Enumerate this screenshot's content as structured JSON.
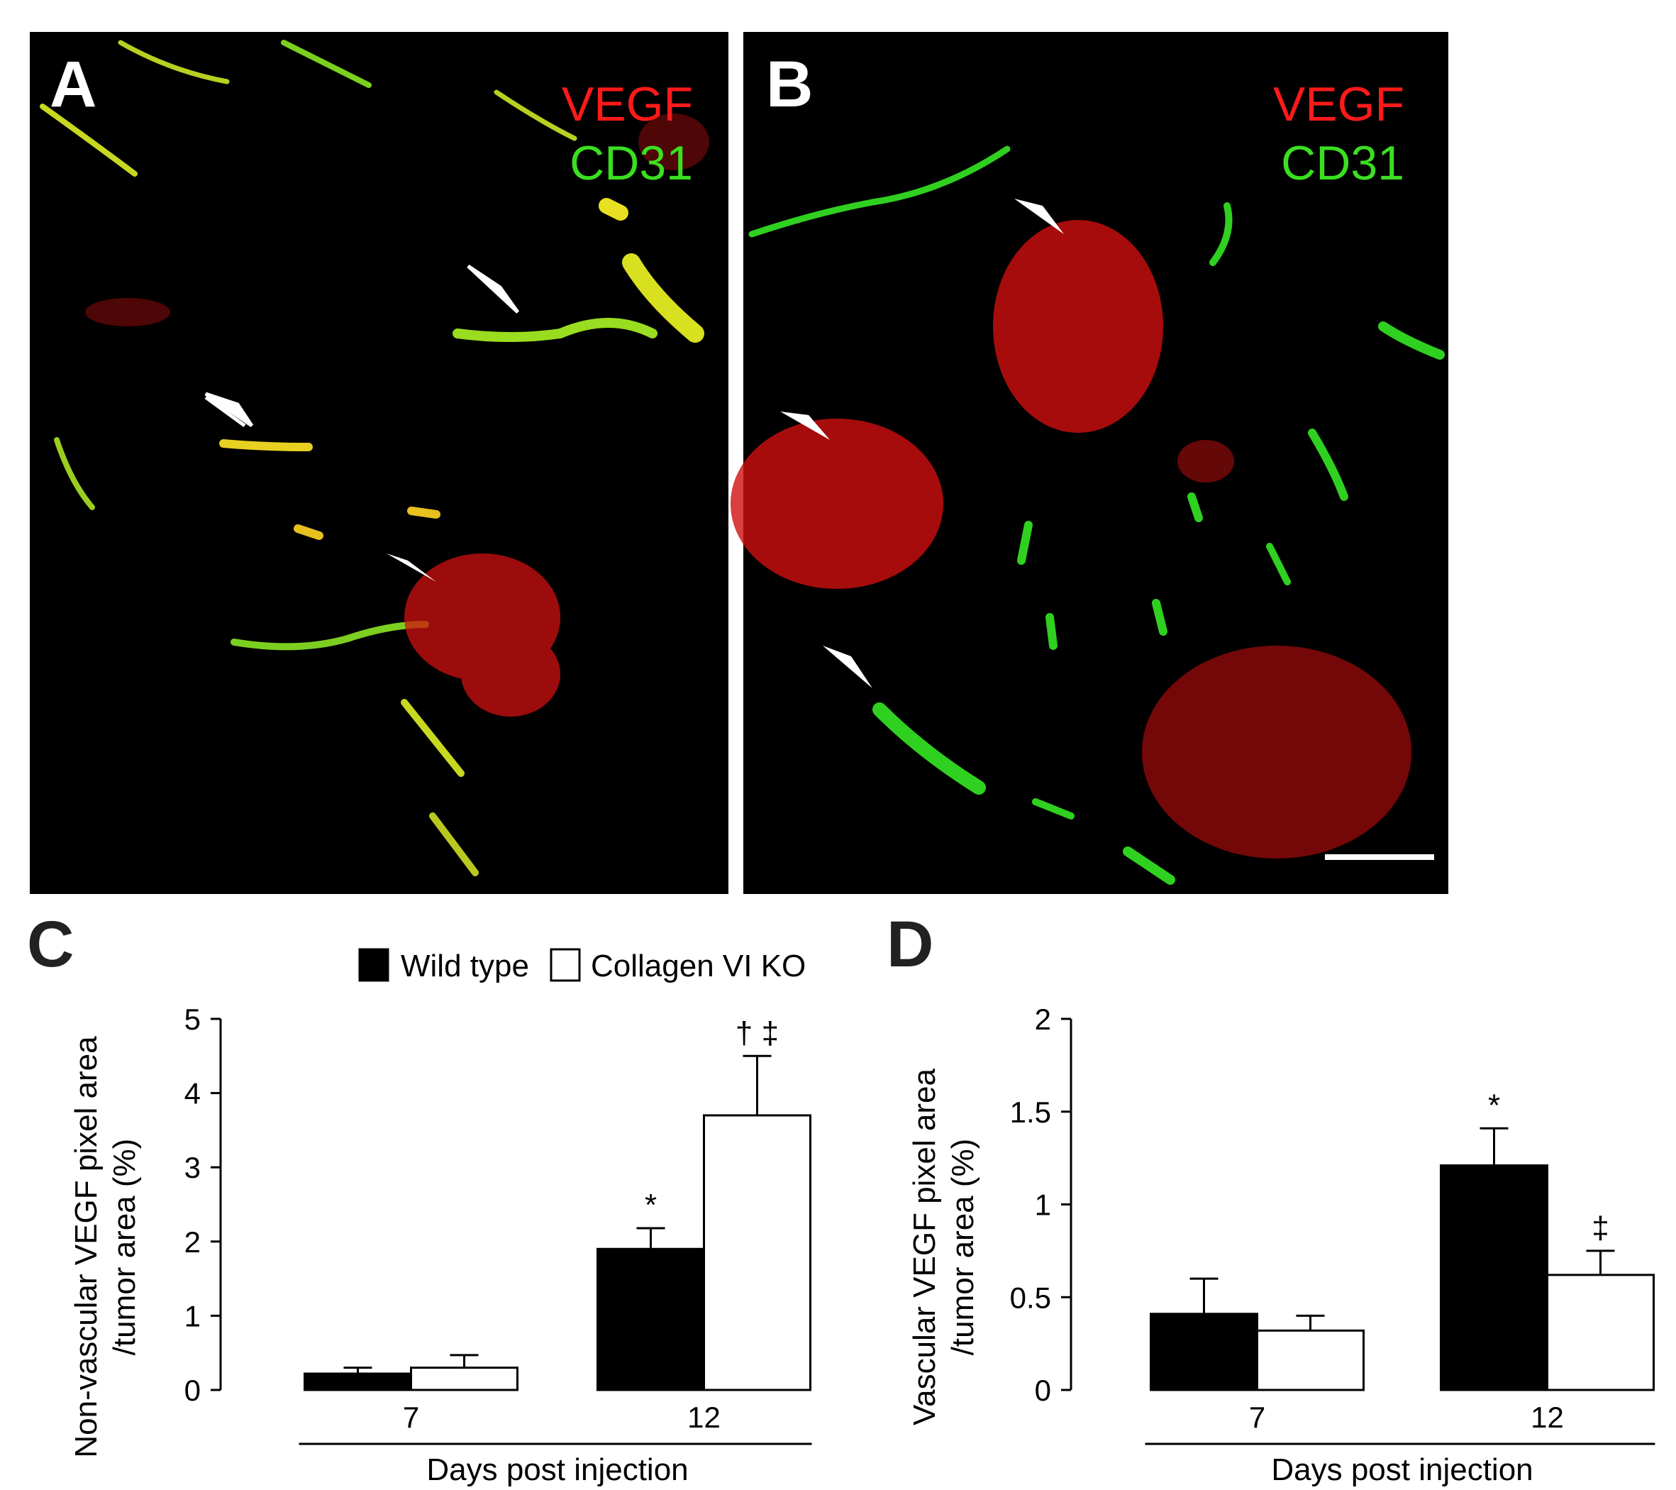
{
  "panels": [
    {
      "label": "A",
      "stains": [
        "VEGF",
        "CD31"
      ]
    },
    {
      "label": "B",
      "stains": [
        "VEGF",
        "CD31"
      ]
    }
  ],
  "chart_data": [
    {
      "type": "bar",
      "panel_label": "C",
      "ylabel": [
        "Non-vascular VEGF pixel area",
        "/tumor area (%)"
      ],
      "xlabel": "Days post injection",
      "categories": [
        "7",
        "12"
      ],
      "series": [
        {
          "name": "Wild type",
          "color": "#000000",
          "values": [
            0.22,
            1.9
          ],
          "errors": [
            0.08,
            0.28
          ],
          "significance": [
            null,
            "*"
          ]
        },
        {
          "name": "Collagen VI KO",
          "color": "#ffffff",
          "values": [
            0.3,
            3.7
          ],
          "errors": [
            0.17,
            0.8
          ],
          "significance": [
            null,
            "† ‡"
          ]
        }
      ],
      "ylim": [
        0,
        5
      ],
      "yticks": [
        0,
        1,
        2,
        3,
        4,
        5
      ],
      "legend": "top"
    },
    {
      "type": "bar",
      "panel_label": "D",
      "ylabel": [
        "Vascular VEGF pixel area",
        "/tumor area (%)"
      ],
      "xlabel": "Days post injection",
      "categories": [
        "7",
        "12"
      ],
      "series": [
        {
          "color": "#000000",
          "values": [
            0.41,
            1.21
          ],
          "errors": [
            0.19,
            0.2
          ],
          "significance": [
            null,
            "*"
          ]
        },
        {
          "color": "#ffffff",
          "values": [
            0.32,
            0.62
          ],
          "errors": [
            0.08,
            0.13
          ],
          "significance": [
            null,
            "‡"
          ]
        }
      ],
      "ylim": [
        0,
        2
      ],
      "yticks": [
        0,
        0.5,
        1,
        1.5,
        2
      ]
    }
  ]
}
